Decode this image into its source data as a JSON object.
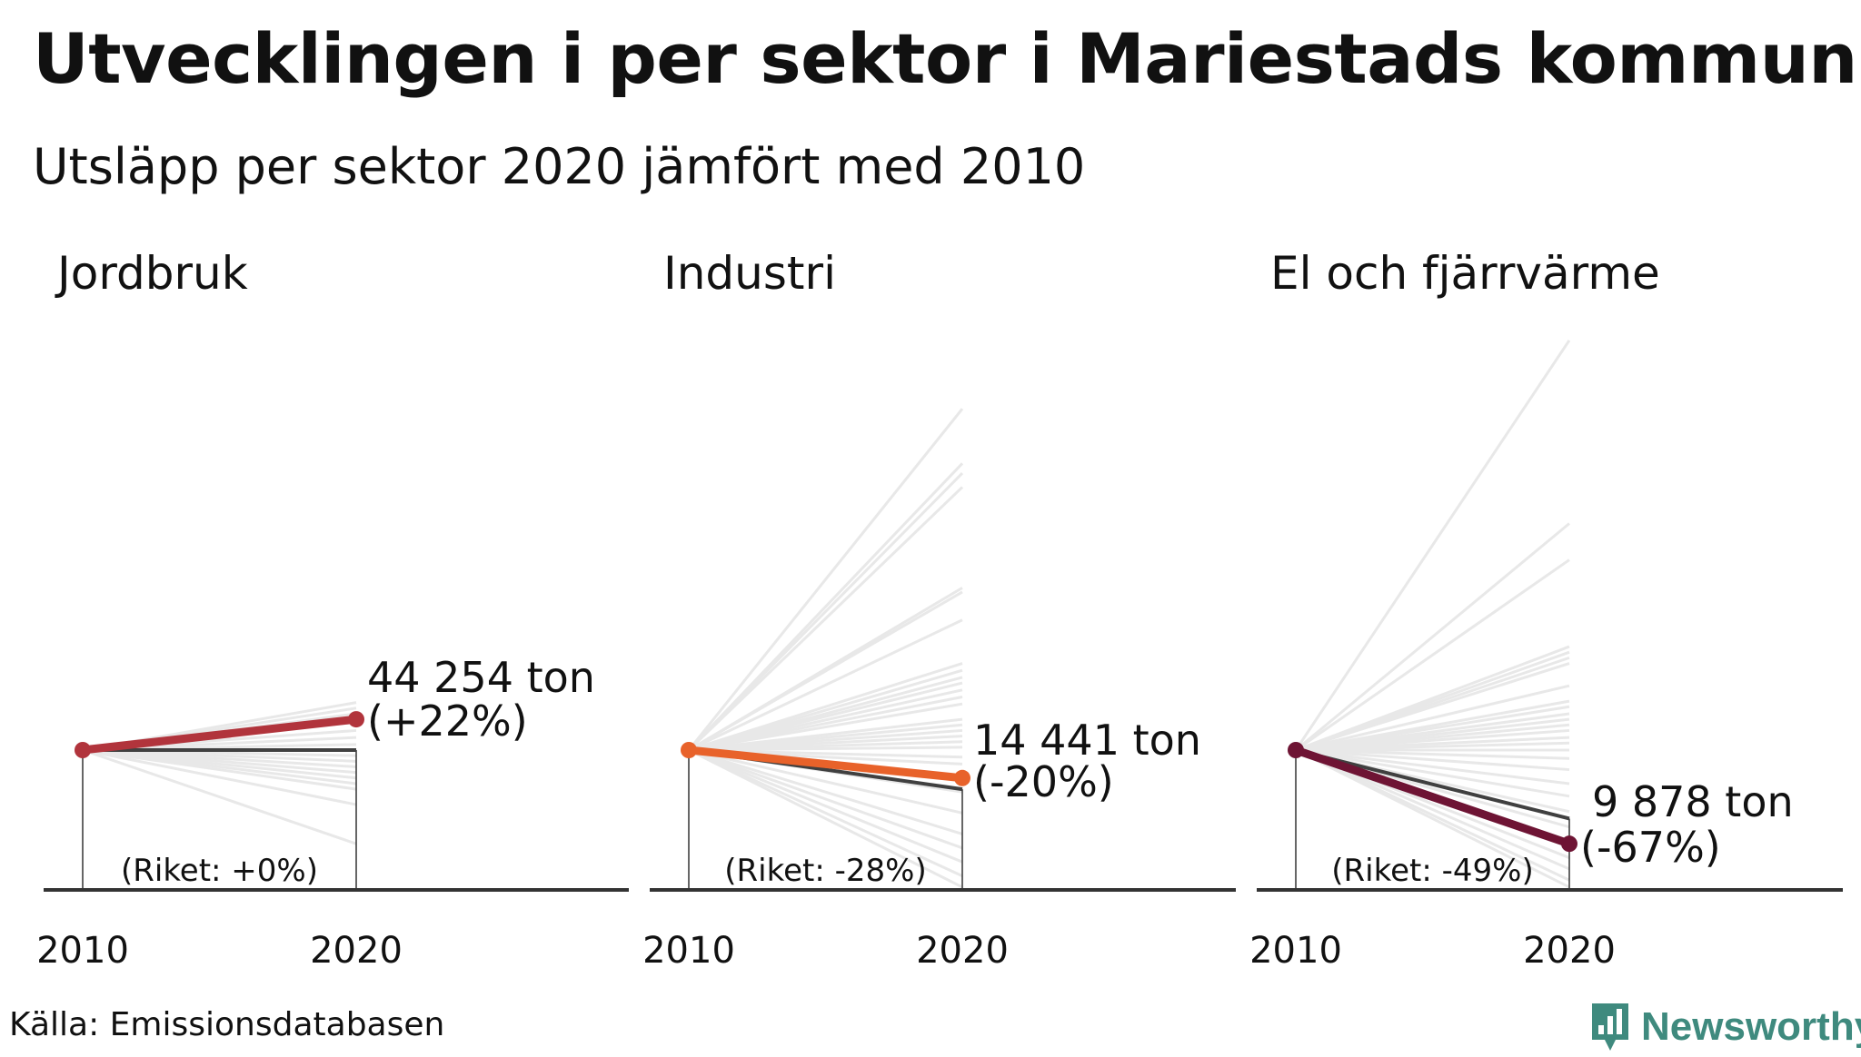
{
  "title": "Utvecklingen i per sektor i Mariestads kommun",
  "subtitle": "Utsläpp per sektor 2020 jämfört med 2010",
  "source": "Källa: Emissionsdatabasen",
  "logo": {
    "text": "Newsworthy",
    "icon": "newsworthy-bar-chart-icon",
    "color": "#3f8a7e"
  },
  "chart_data": [
    {
      "type": "line",
      "title": "Jordbruk",
      "x": [
        "2010",
        "2020"
      ],
      "ylim": [
        -100,
        500
      ],
      "kommun": {
        "value_2020": "44 254 ton",
        "change_pct": 22,
        "label": "(+22%)",
        "color": "#b1343c"
      },
      "riket": {
        "change_pct": 0,
        "label": "(Riket: +0%)",
        "color": "#404040"
      },
      "other_kommuner_change_pct": [
        34,
        30,
        26,
        20,
        14,
        9,
        4,
        0,
        -4,
        -8,
        -12,
        -16,
        -20,
        -24,
        -28,
        -39,
        -67
      ]
    },
    {
      "type": "line",
      "title": "Industri",
      "x": [
        "2010",
        "2020"
      ],
      "ylim": [
        -100,
        500
      ],
      "kommun": {
        "value_2020": "14 441 ton",
        "change_pct": -20,
        "label": "(-20%)",
        "color": "#e8622a"
      },
      "riket": {
        "change_pct": -28,
        "label": "(Riket: -28%)",
        "color": "#404040"
      },
      "other_kommuner_change_pct": [
        244,
        205,
        198,
        188,
        116,
        113,
        93,
        62,
        57,
        52,
        48,
        43,
        38,
        33,
        22,
        18,
        14,
        10,
        6,
        2,
        -5,
        -10,
        -30,
        -45,
        -60,
        -70,
        -80,
        -90,
        -98
      ]
    },
    {
      "type": "line",
      "title": "El och fjärrvärme",
      "x": [
        "2010",
        "2020"
      ],
      "ylim": [
        -100,
        500
      ],
      "kommun": {
        "value_2020": "9 878 ton",
        "change_pct": -67,
        "label": "(-67%)",
        "color": "#6e1434"
      },
      "riket": {
        "change_pct": -49,
        "label": "(Riket: -49%)",
        "color": "#404040"
      },
      "other_kommuner_change_pct": [
        293,
        162,
        136,
        74,
        70,
        66,
        62,
        46,
        35,
        31,
        26,
        22,
        18,
        14,
        9,
        5,
        0,
        -6,
        -14,
        -24,
        -33,
        -44,
        -55,
        -66,
        -77,
        -85,
        -93,
        -98
      ]
    }
  ]
}
